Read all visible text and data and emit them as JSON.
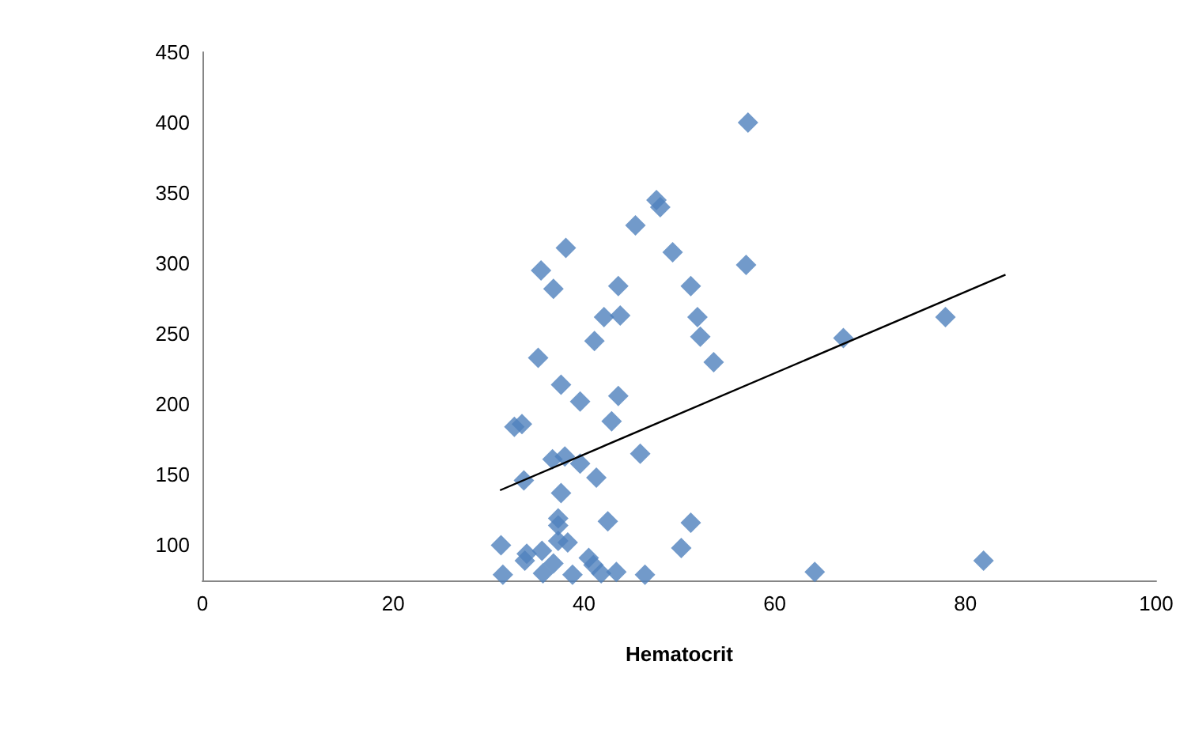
{
  "chart_data": {
    "type": "scatter",
    "xlabel": "Hematocrit",
    "grid": false,
    "xlim": [
      0,
      100
    ],
    "xticks": [
      0,
      20,
      40,
      60,
      80,
      100
    ],
    "ylim": [
      75,
      450
    ],
    "yticks": [
      100,
      150,
      200,
      250,
      300,
      350,
      400,
      450
    ],
    "series": [
      {
        "marker": "diamond",
        "color": "#4f81bd",
        "x": [
          57.2,
          47.6,
          48,
          45.4,
          49.3,
          38.1,
          35.5,
          36.8,
          43.6,
          51.2,
          57,
          42.1,
          43.8,
          51.9,
          52.2,
          41.1,
          53.6,
          35.2,
          67.2,
          77.9,
          37.6,
          39.6,
          43.6,
          42.9,
          32.7,
          33.5,
          36.7,
          38,
          39.6,
          45.9,
          41.3,
          33.7,
          37.6,
          37.3,
          37.3,
          42.5,
          51.2,
          50.2,
          31.3,
          34,
          35.6,
          38.3,
          37.3,
          40.5,
          31.5,
          35.7,
          38.8,
          41.8,
          43.4,
          46.4,
          33.8,
          36.8,
          41,
          64.2,
          81.9
        ],
        "values": [
          400,
          345,
          340,
          327,
          308,
          311,
          295,
          282,
          284,
          284,
          299,
          262,
          263,
          262,
          248,
          245,
          230,
          233,
          247,
          262,
          214,
          202,
          206,
          188,
          184,
          186,
          161,
          163,
          158,
          165,
          148,
          146,
          137,
          119,
          114,
          117,
          116,
          98,
          100,
          94,
          96,
          102,
          103,
          91,
          79,
          80,
          79,
          80,
          81,
          79,
          89,
          87,
          86,
          81,
          89
        ]
      },
      {
        "type": "line",
        "marker": "none",
        "color": "#000000",
        "x": [
          31.2,
          84.2
        ],
        "values": [
          139,
          292
        ]
      }
    ]
  }
}
